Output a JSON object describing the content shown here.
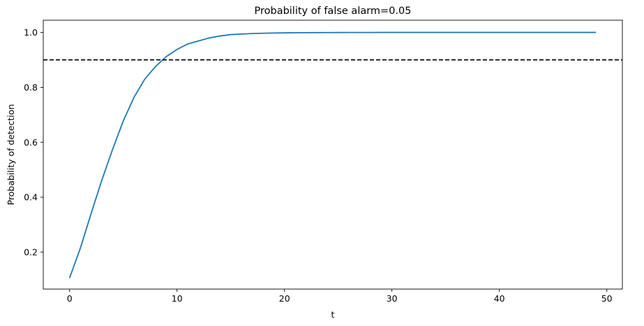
{
  "chart_data": {
    "type": "line",
    "title": "Probability of false alarm=0.05",
    "xlabel": "t",
    "ylabel": "Probability of detection",
    "xlim": [
      -2.45,
      51.45
    ],
    "ylim": [
      0.0655,
      1.0445
    ],
    "xticks": [
      0,
      10,
      20,
      30,
      40,
      50
    ],
    "yticks": [
      0.2,
      0.4,
      0.6,
      0.8,
      1.0
    ],
    "xtick_labels": [
      "0",
      "10",
      "20",
      "30",
      "40",
      "50"
    ],
    "ytick_labels": [
      "0.2",
      "0.4",
      "0.6",
      "0.8",
      "1.0"
    ],
    "grid": false,
    "series": [
      {
        "color": "#1f77b4",
        "x": [
          0,
          1,
          2,
          3,
          4,
          5,
          6,
          7,
          8,
          9,
          10,
          11,
          12,
          13,
          14,
          15,
          16,
          17,
          18,
          19,
          20,
          21,
          22,
          23,
          24,
          25,
          26,
          27,
          28,
          29,
          30,
          31,
          32,
          33,
          34,
          35,
          36,
          37,
          38,
          39,
          40,
          41,
          42,
          43,
          44,
          45,
          46,
          47,
          48,
          49
        ],
        "values": [
          0.106,
          0.214,
          0.34,
          0.462,
          0.574,
          0.678,
          0.764,
          0.83,
          0.876,
          0.912,
          0.938,
          0.958,
          0.969,
          0.98,
          0.987,
          0.992,
          0.994,
          0.996,
          0.997,
          0.9978,
          0.9984,
          0.9988,
          0.9991,
          0.9993,
          0.9995,
          0.9996,
          0.9997,
          0.9998,
          0.9998,
          0.9999,
          0.9999,
          0.9999,
          1.0,
          1.0,
          1.0,
          1.0,
          1.0,
          1.0,
          1.0,
          1.0,
          1.0,
          1.0,
          1.0,
          1.0,
          1.0,
          1.0,
          1.0,
          1.0,
          1.0,
          1.0
        ]
      }
    ],
    "reference_lines": [
      {
        "orientation": "horizontal",
        "y": 0.9,
        "style": "dashed",
        "color": "#000000"
      }
    ]
  }
}
